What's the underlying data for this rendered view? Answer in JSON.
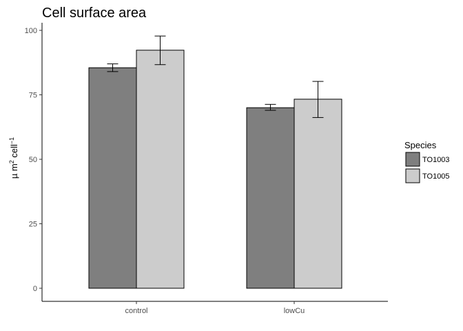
{
  "chart_data": {
    "type": "bar",
    "title": "Cell surface area",
    "xlabel": "",
    "ylabel": {
      "base": "µ m",
      "sup1": "2",
      "mid": " cell",
      "sup2": "−1"
    },
    "categories": [
      "control",
      "lowCu"
    ],
    "ylim": [
      0,
      100
    ],
    "yticks": [
      0,
      25,
      50,
      75,
      100
    ],
    "series": [
      {
        "name": "TO1003",
        "color": "#7f7f7f",
        "values": [
          85.5,
          70.0
        ],
        "err_low": [
          84.0,
          69.0
        ],
        "err_high": [
          87.0,
          71.3
        ]
      },
      {
        "name": "TO1005",
        "color": "#cccccc",
        "values": [
          92.3,
          73.3
        ],
        "err_low": [
          86.7,
          66.2
        ],
        "err_high": [
          97.8,
          80.2
        ]
      }
    ],
    "legend": {
      "title": "Species",
      "position": "right"
    },
    "grid": false
  }
}
